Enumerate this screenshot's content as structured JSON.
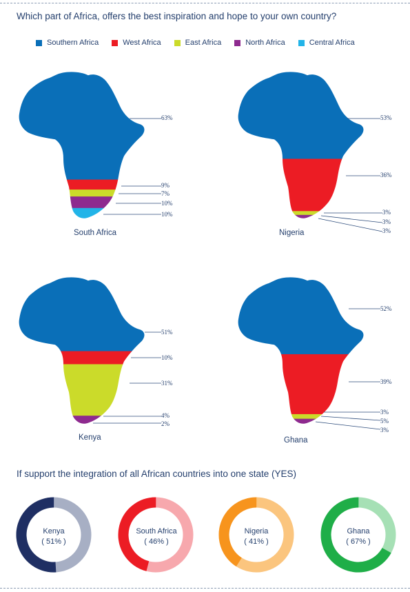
{
  "page": {
    "title": "Which part of Africa, offers the best inspiration and hope to your own country?",
    "section2_title": "If support the integration of all African countries into one state (YES)"
  },
  "legend": [
    {
      "label": "Southern Africa",
      "color": "#0a6fb8"
    },
    {
      "label": "West Africa",
      "color": "#ec1c24"
    },
    {
      "label": "East Africa",
      "color": "#cbdb2a"
    },
    {
      "label": "North Africa",
      "color": "#8e2a8f"
    },
    {
      "label": "Central Africa",
      "color": "#22b4e8"
    }
  ],
  "chart_data": [
    {
      "type": "area",
      "title": "South Africa",
      "categories": [
        "Southern Africa",
        "West Africa",
        "East Africa",
        "North Africa",
        "Central Africa"
      ],
      "values": [
        63,
        9,
        7,
        10,
        10
      ],
      "labels": [
        "63%",
        "9%",
        "7%",
        "10%",
        "10%"
      ]
    },
    {
      "type": "area",
      "title": "Nigeria",
      "categories": [
        "Southern Africa",
        "West Africa",
        "East Africa",
        "North Africa",
        "Central Africa"
      ],
      "values": [
        53,
        36,
        3,
        3,
        3
      ],
      "labels": [
        "53%",
        "36%",
        "3%",
        "3%",
        "3%"
      ]
    },
    {
      "type": "area",
      "title": "Kenya",
      "categories": [
        "Southern Africa",
        "West Africa",
        "East Africa",
        "North Africa",
        "Central Africa"
      ],
      "values": [
        51,
        10,
        31,
        4,
        2
      ],
      "labels": [
        "51%",
        "10%",
        "31%",
        "4%",
        "2%"
      ]
    },
    {
      "type": "area",
      "title": "Ghana",
      "categories": [
        "Southern Africa",
        "West Africa",
        "East Africa",
        "North Africa",
        "Central Africa"
      ],
      "values": [
        52,
        39,
        3,
        5,
        3
      ],
      "labels": [
        "52%",
        "39%",
        "3%",
        "5%",
        "3%"
      ]
    },
    {
      "type": "pie",
      "title": "If support the integration of all African countries into one state (YES)",
      "categories": [
        "Kenya",
        "South Africa",
        "Nigeria",
        "Ghana"
      ],
      "values": [
        51,
        46,
        41,
        67
      ],
      "labels": [
        "( 51% )",
        "( 46% )",
        "( 41% )",
        "( 67% )"
      ],
      "colors": [
        {
          "main": "#1f2f63",
          "rest": "#a7afc4"
        },
        {
          "main": "#ec1c24",
          "rest": "#f7a8ad"
        },
        {
          "main": "#f7941d",
          "rest": "#fbc57e"
        },
        {
          "main": "#1fae48",
          "rest": "#a6e0b5"
        }
      ]
    }
  ]
}
